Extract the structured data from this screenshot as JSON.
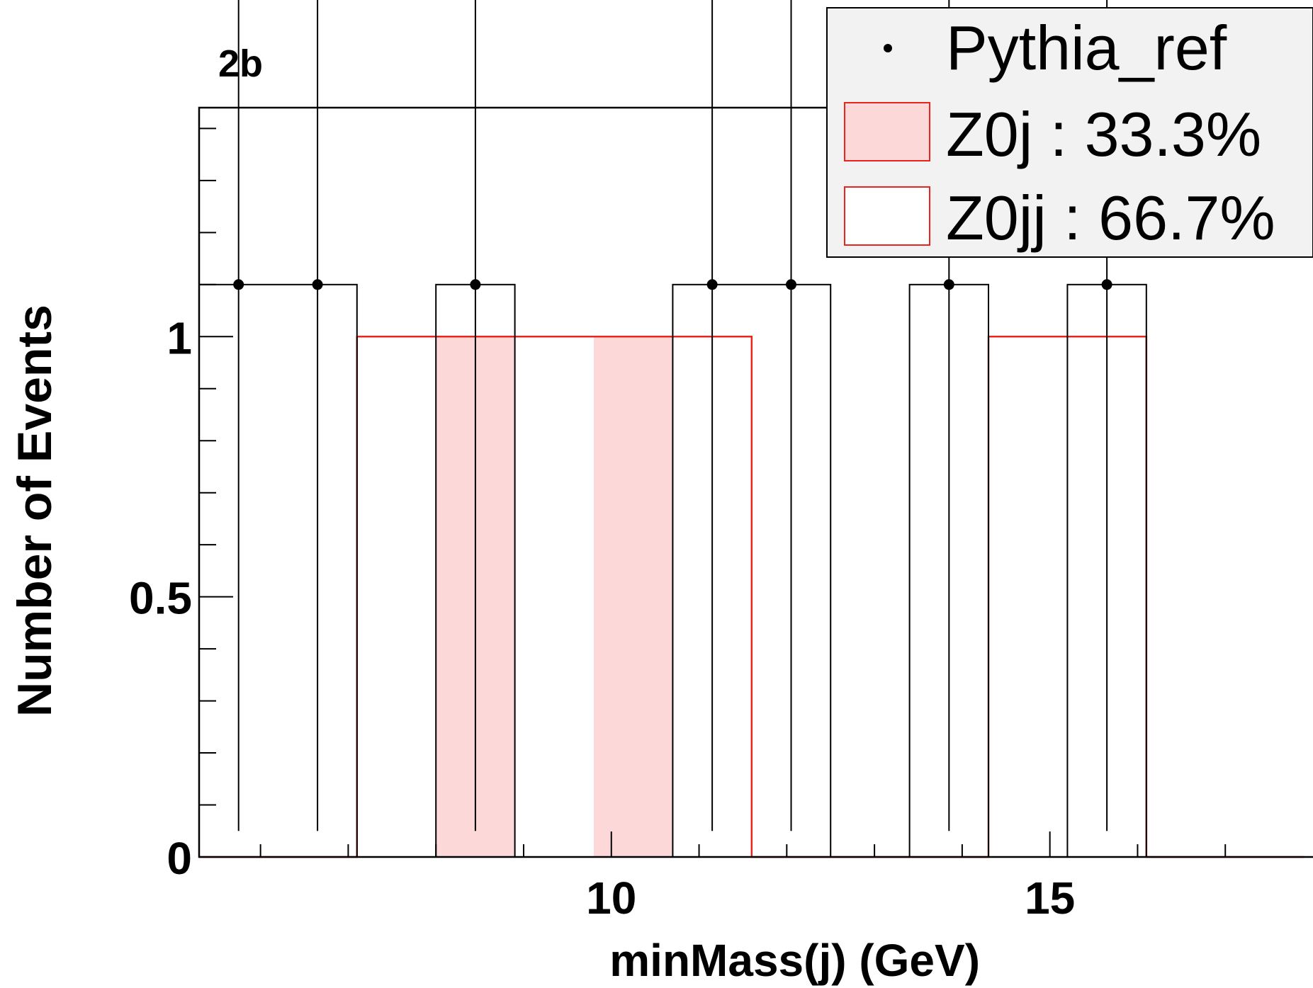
{
  "chart_data": {
    "type": "bar",
    "title": "2b",
    "xlabel": "minMass(j) (GeV)",
    "ylabel": "Number of Events",
    "xlim": [
      5.3,
      18.0
    ],
    "ylim": [
      0,
      1.44
    ],
    "x_ticks": [
      {
        "value": 10,
        "label": "10"
      },
      {
        "value": 15,
        "label": "15"
      }
    ],
    "y_ticks": [
      {
        "value": 0,
        "label": "0"
      },
      {
        "value": 0.5,
        "label": "0.5"
      },
      {
        "value": 1,
        "label": "1"
      }
    ],
    "bin_edges": [
      5.3,
      6.2,
      7.1,
      8.0,
      8.9,
      9.8,
      10.7,
      11.6,
      12.5,
      13.4,
      14.3,
      15.2,
      16.1,
      17.0,
      17.9
    ],
    "series": [
      {
        "name": "Z0jj : 66.7%",
        "style": "outline",
        "color": "#e8261d",
        "values": [
          0,
          0,
          1,
          1,
          1,
          1,
          1,
          0,
          0,
          0,
          1,
          1,
          0,
          0
        ]
      },
      {
        "name": "Z0j : 33.3%",
        "style": "filled",
        "color": "#e8261d",
        "fill": "#fdd8d8",
        "values": [
          0,
          0,
          0,
          1,
          0,
          1,
          0,
          0,
          0,
          0,
          0,
          0,
          0,
          0
        ]
      },
      {
        "name": "Pythia_ref",
        "style": "markers",
        "color": "#000000",
        "x": [
          5.75,
          6.65,
          8.45,
          11.15,
          12.05,
          13.85,
          15.65
        ],
        "values": [
          1.1,
          1.1,
          1.1,
          1.1,
          1.1,
          1.1,
          1.1
        ],
        "err_low": [
          1.05,
          1.05,
          1.05,
          1.05,
          1.05,
          1.05,
          1.05
        ],
        "err_high": [
          1.1,
          1.1,
          1.1,
          1.1,
          1.1,
          1.1,
          1.1
        ]
      }
    ],
    "ref_histogram_bins": [
      {
        "x0": 5.3,
        "x1": 7.1,
        "value": 1.1
      },
      {
        "x0": 8.0,
        "x1": 8.9,
        "value": 1.1
      },
      {
        "x0": 10.7,
        "x1": 12.5,
        "value": 1.1
      },
      {
        "x0": 13.4,
        "x1": 14.3,
        "value": 1.1
      },
      {
        "x0": 15.2,
        "x1": 16.1,
        "value": 1.1
      }
    ],
    "legend": {
      "placement": "top-right",
      "entries": [
        {
          "label": "Pythia_ref",
          "marker": "dot"
        },
        {
          "label": "Z0j : 33.3%",
          "marker": "filled-box"
        },
        {
          "label": "Z0jj : 66.7%",
          "marker": "outline-box"
        }
      ]
    }
  }
}
